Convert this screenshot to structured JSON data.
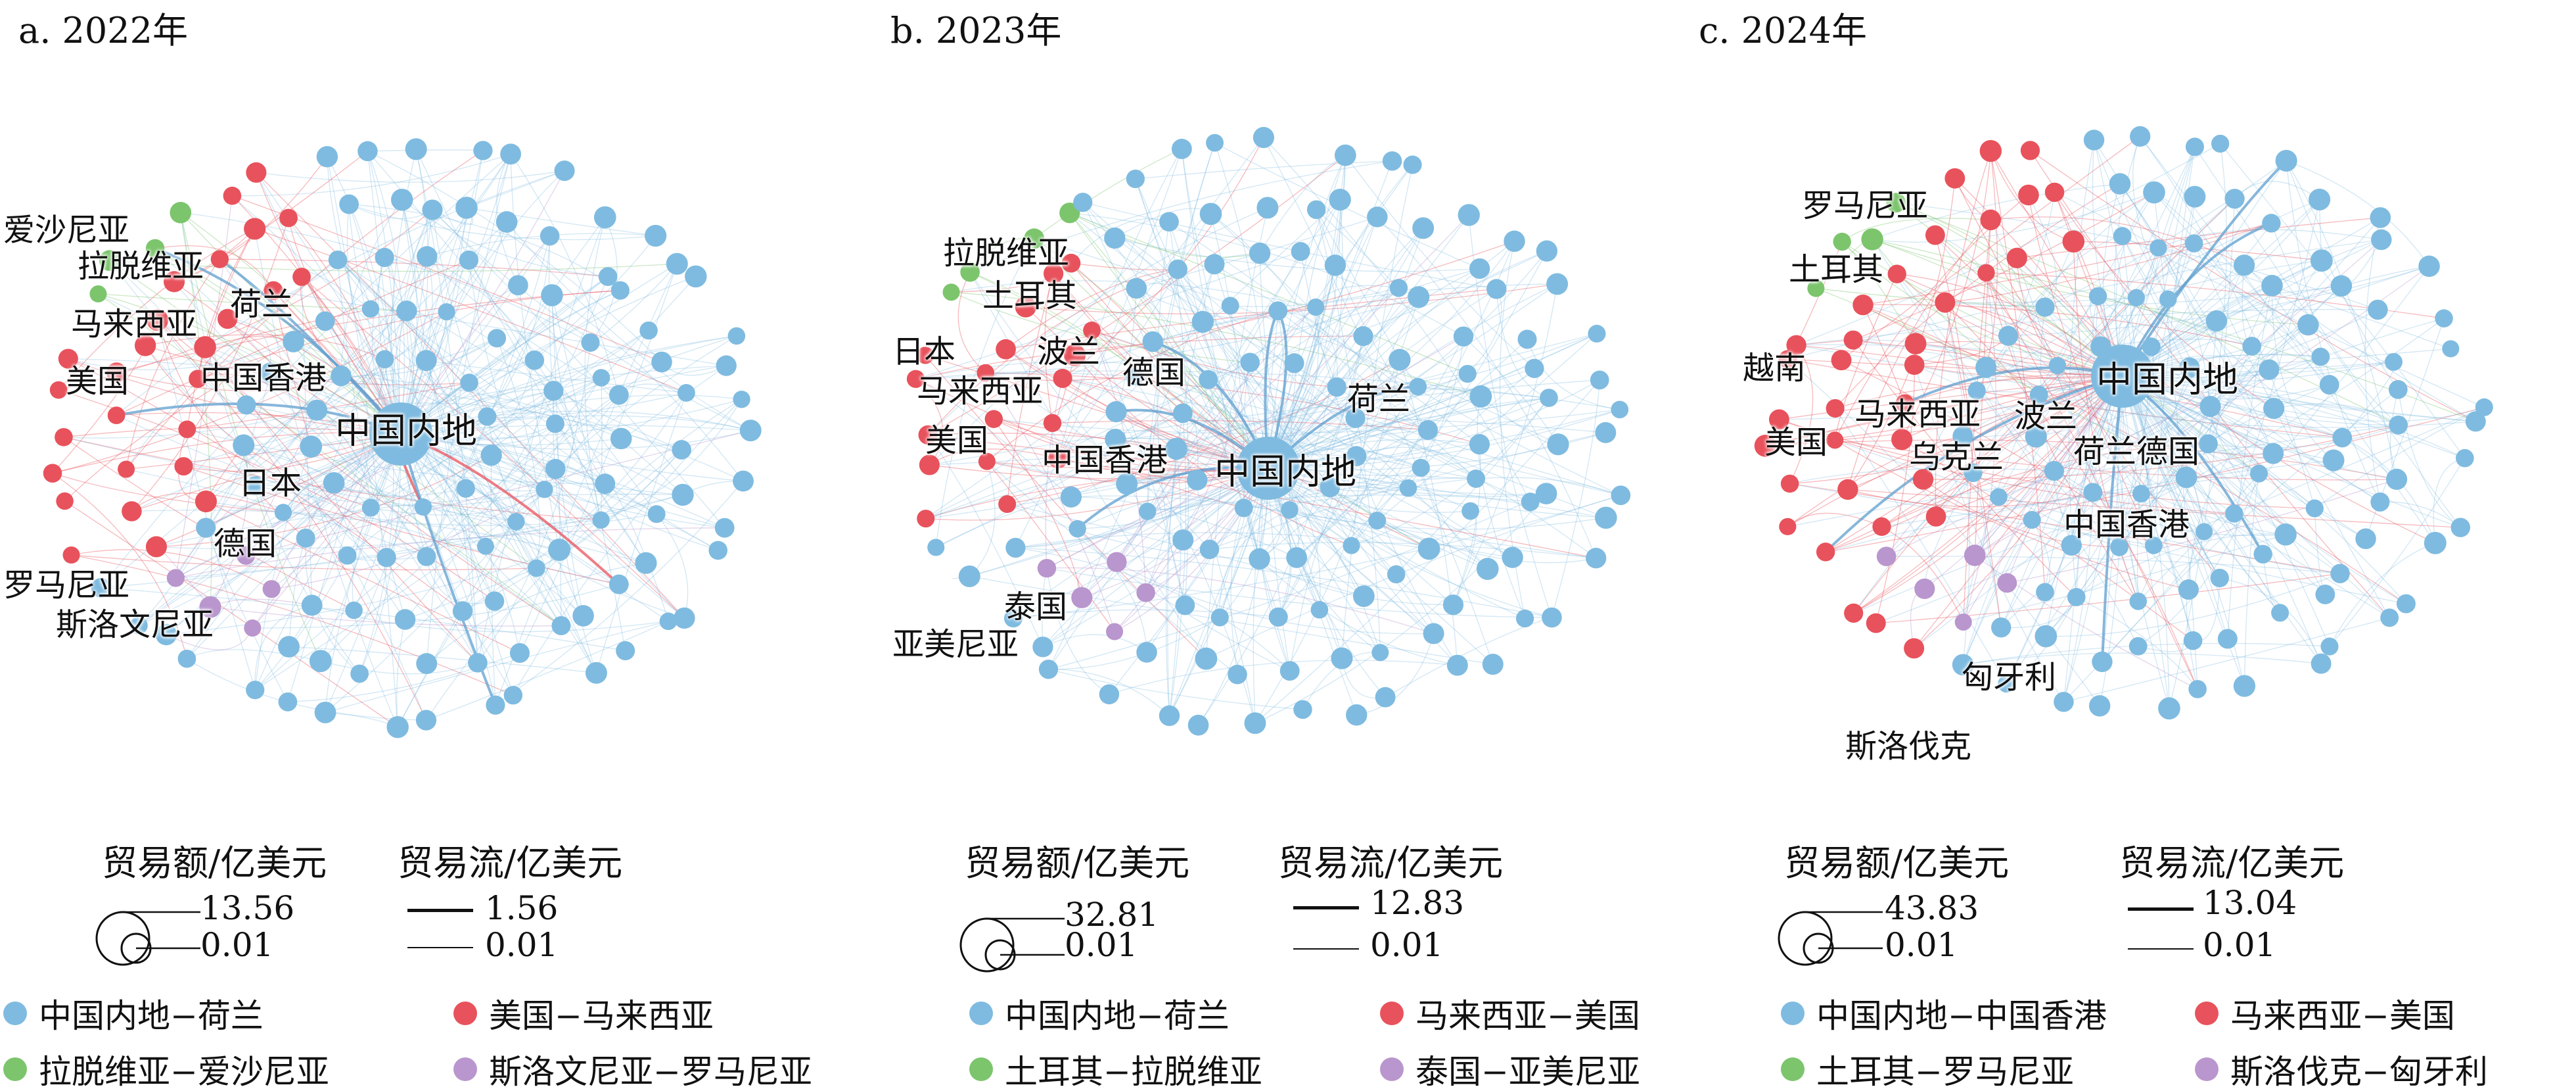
{
  "colors": {
    "blue": "#7fbbe0",
    "red": "#e8525c",
    "green": "#7cc56d",
    "purple": "#b996cd"
  },
  "panels": [
    {
      "title": "a. 2022年",
      "main_label": "中国内地",
      "labels": [
        {
          "text": "爱沙尼亚",
          "color": "green"
        },
        {
          "text": "拉脱维亚",
          "color": "green"
        },
        {
          "text": "马来西亚",
          "color": "red"
        },
        {
          "text": "荷兰",
          "color": "blue"
        },
        {
          "text": "美国",
          "color": "red"
        },
        {
          "text": "中国香港",
          "color": "blue"
        },
        {
          "text": "日本",
          "color": "blue"
        },
        {
          "text": "德国",
          "color": "blue"
        },
        {
          "text": "罗马尼亚",
          "color": "purple"
        },
        {
          "text": "斯洛文尼亚",
          "color": "purple"
        }
      ],
      "legend": {
        "size_title": "贸易额/亿美元",
        "size_max": "13.56",
        "size_min": "0.01",
        "flow_title": "贸易流/亿美元",
        "flow_max": "1.56",
        "flow_min": "0.01"
      },
      "categories": [
        {
          "label": "中国内地−荷兰",
          "color": "blue"
        },
        {
          "label": "美国−马来西亚",
          "color": "red"
        },
        {
          "label": "拉脱维亚−爱沙尼亚",
          "color": "green"
        },
        {
          "label": "斯洛文尼亚−罗马尼亚",
          "color": "purple"
        }
      ]
    },
    {
      "title": "b. 2023年",
      "main_label": "中国内地",
      "labels": [
        {
          "text": "拉脱维亚",
          "color": "green"
        },
        {
          "text": "土耳其",
          "color": "green"
        },
        {
          "text": "日本",
          "color": "red"
        },
        {
          "text": "波兰",
          "color": "blue"
        },
        {
          "text": "德国",
          "color": "blue"
        },
        {
          "text": "马来西亚",
          "color": "red"
        },
        {
          "text": "荷兰",
          "color": "blue"
        },
        {
          "text": "美国",
          "color": "red"
        },
        {
          "text": "中国香港",
          "color": "blue"
        },
        {
          "text": "泰国",
          "color": "purple"
        },
        {
          "text": "亚美尼亚",
          "color": "purple"
        }
      ],
      "legend": {
        "size_title": "贸易额/亿美元",
        "size_max": "32.81",
        "size_min": "0.01",
        "flow_title": "贸易流/亿美元",
        "flow_max": "12.83",
        "flow_min": "0.01"
      },
      "categories": [
        {
          "label": "中国内地−荷兰",
          "color": "blue"
        },
        {
          "label": "马来西亚−美国",
          "color": "red"
        },
        {
          "label": "土耳其−拉脱维亚",
          "color": "green"
        },
        {
          "label": "泰国−亚美尼亚",
          "color": "purple"
        }
      ]
    },
    {
      "title": "c. 2024年",
      "main_label": "中国内地",
      "labels": [
        {
          "text": "罗马尼亚",
          "color": "green"
        },
        {
          "text": "土耳其",
          "color": "green"
        },
        {
          "text": "越南",
          "color": "red"
        },
        {
          "text": "马来西亚",
          "color": "red"
        },
        {
          "text": "波兰",
          "color": "blue"
        },
        {
          "text": "美国",
          "color": "red"
        },
        {
          "text": "乌克兰",
          "color": "red"
        },
        {
          "text": "荷兰德国",
          "color": "blue"
        },
        {
          "text": "中国香港",
          "color": "blue"
        },
        {
          "text": "匈牙利",
          "color": "purple"
        },
        {
          "text": "斯洛伐克",
          "color": "purple"
        }
      ],
      "legend": {
        "size_title": "贸易额/亿美元",
        "size_max": "43.83",
        "size_min": "0.01",
        "flow_title": "贸易流/亿美元",
        "flow_max": "13.04",
        "flow_min": "0.01"
      },
      "categories": [
        {
          "label": "中国内地−中国香港",
          "color": "blue"
        },
        {
          "label": "马来西亚−美国",
          "color": "red"
        },
        {
          "label": "土耳其−罗马尼亚",
          "color": "green"
        },
        {
          "label": "斯洛伐克−匈牙利",
          "color": "purple"
        }
      ]
    }
  ]
}
